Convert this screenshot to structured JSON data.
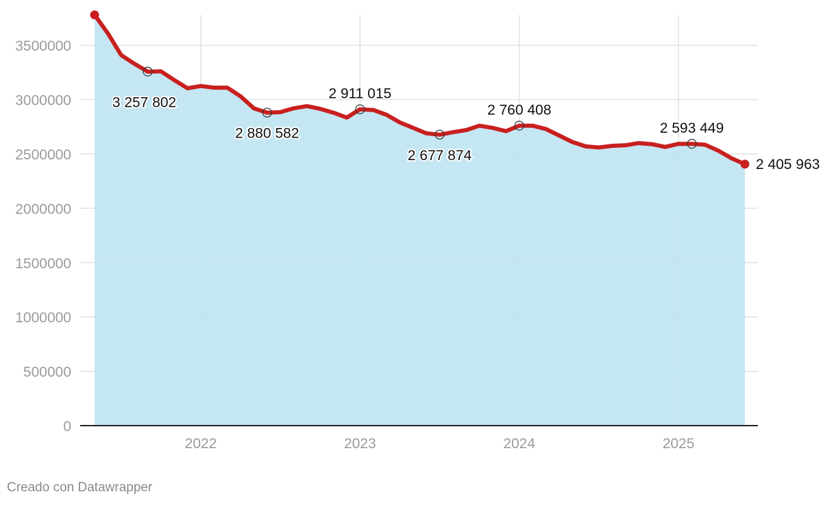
{
  "chart_data": {
    "type": "area",
    "title": "",
    "xlabel": "",
    "ylabel": "",
    "ylim": [
      0,
      3800000
    ],
    "y_ticks": [
      "0",
      "500000",
      "1000000",
      "1500000",
      "2000000",
      "2500000",
      "3000000",
      "3500000"
    ],
    "x_ticks": [
      "2022",
      "2023",
      "2024",
      "2025"
    ],
    "grid": "on",
    "colors": {
      "line": "#c8201f",
      "area": "#bde3f1",
      "grid": "#e2e2e2",
      "axis": "#222222"
    },
    "series": [
      {
        "x": [
          "2021-05",
          "2021-06",
          "2021-07",
          "2021-08",
          "2021-09",
          "2021-10",
          "2021-11",
          "2021-12",
          "2022-01",
          "2022-02",
          "2022-03",
          "2022-04",
          "2022-05",
          "2022-06",
          "2022-07",
          "2022-08",
          "2022-09",
          "2022-10",
          "2022-11",
          "2022-12",
          "2023-01",
          "2023-02",
          "2023-03",
          "2023-04",
          "2023-05",
          "2023-06",
          "2023-07",
          "2023-08",
          "2023-09",
          "2023-10",
          "2023-11",
          "2023-12",
          "2024-01",
          "2024-02",
          "2024-03",
          "2024-04",
          "2024-05",
          "2024-06",
          "2024-07",
          "2024-08",
          "2024-09",
          "2024-10",
          "2024-11",
          "2024-12",
          "2025-01",
          "2025-02",
          "2025-03",
          "2025-04",
          "2025-05",
          "2025-06"
        ],
        "values": [
          3780000,
          3610000,
          3410000,
          3330000,
          3257802,
          3260000,
          3180000,
          3105000,
          3125000,
          3110000,
          3110000,
          3030000,
          2920000,
          2880582,
          2885000,
          2920000,
          2940000,
          2915000,
          2880000,
          2835000,
          2911015,
          2905000,
          2860000,
          2790000,
          2740000,
          2690000,
          2677874,
          2700000,
          2720000,
          2760000,
          2740000,
          2710000,
          2760408,
          2760000,
          2730000,
          2670000,
          2610000,
          2570000,
          2560000,
          2575000,
          2580000,
          2600000,
          2590000,
          2565000,
          2593449,
          2593449,
          2585000,
          2530000,
          2460000,
          2405963
        ],
        "markers": [
          {
            "x": "2021-05",
            "label": ""
          },
          {
            "x": "2021-09",
            "label": "3 257 802"
          },
          {
            "x": "2022-06",
            "label": "2 880 582"
          },
          {
            "x": "2023-01",
            "label": "2 911 015"
          },
          {
            "x": "2023-07",
            "label": "2 677 874"
          },
          {
            "x": "2024-01",
            "label": "2 760 408"
          },
          {
            "x": "2025-02",
            "label": "2 593 449"
          },
          {
            "x": "2025-06",
            "label": "2 405 963"
          }
        ]
      }
    ]
  },
  "footer": {
    "credit": "Creado con Datawrapper"
  }
}
